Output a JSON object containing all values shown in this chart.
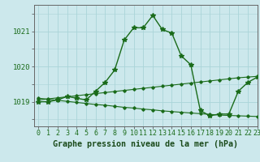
{
  "xlabel": "Graphe pression niveau de la mer (hPa)",
  "bg_color": "#cce8ec",
  "grid_color": "#aad4d8",
  "line_color": "#1a6b1a",
  "ylim": [
    1018.3,
    1021.75
  ],
  "xlim": [
    -0.5,
    23
  ],
  "yticks": [
    1019,
    1020,
    1021
  ],
  "xticks": [
    0,
    1,
    2,
    3,
    4,
    5,
    6,
    7,
    8,
    9,
    10,
    11,
    12,
    13,
    14,
    15,
    16,
    17,
    18,
    19,
    20,
    21,
    22,
    23
  ],
  "series1_x": [
    0,
    1,
    2,
    3,
    4,
    5,
    6,
    7,
    8,
    9,
    10,
    11,
    12,
    13,
    14,
    15,
    16,
    17,
    18,
    19,
    20,
    21,
    22,
    23
  ],
  "series1_y": [
    1019.0,
    1019.0,
    1019.05,
    1019.15,
    1019.1,
    1019.05,
    1019.3,
    1019.55,
    1019.9,
    1020.75,
    1021.1,
    1021.1,
    1021.45,
    1021.05,
    1020.95,
    1020.3,
    1020.05,
    1018.75,
    1018.6,
    1018.65,
    1018.65,
    1019.3,
    1019.55,
    1019.7
  ],
  "series2_x": [
    0,
    1,
    2,
    3,
    4,
    5,
    6,
    7,
    8,
    9,
    10,
    11,
    12,
    13,
    14,
    15,
    16,
    17,
    18,
    19,
    20,
    21,
    22,
    23
  ],
  "series2_y": [
    1019.05,
    1019.08,
    1019.11,
    1019.14,
    1019.17,
    1019.2,
    1019.23,
    1019.26,
    1019.29,
    1019.32,
    1019.35,
    1019.38,
    1019.41,
    1019.44,
    1019.47,
    1019.5,
    1019.53,
    1019.56,
    1019.59,
    1019.62,
    1019.65,
    1019.68,
    1019.7,
    1019.72
  ],
  "series3_x": [
    0,
    1,
    2,
    3,
    4,
    5,
    6,
    7,
    8,
    9,
    10,
    11,
    12,
    13,
    14,
    15,
    16,
    17,
    18,
    19,
    20,
    21,
    22,
    23
  ],
  "series3_y": [
    1019.1,
    1019.07,
    1019.04,
    1019.01,
    1018.98,
    1018.95,
    1018.92,
    1018.9,
    1018.87,
    1018.84,
    1018.82,
    1018.79,
    1018.77,
    1018.74,
    1018.72,
    1018.7,
    1018.68,
    1018.66,
    1018.64,
    1018.62,
    1018.61,
    1018.6,
    1018.59,
    1018.58
  ],
  "tick_fontsize": 6.0,
  "label_fontsize": 7.2
}
